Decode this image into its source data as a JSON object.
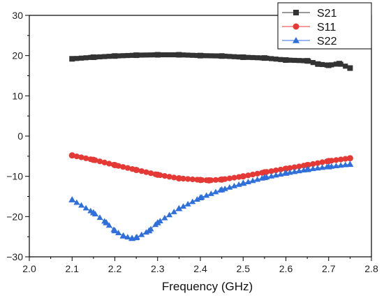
{
  "chart_data": {
    "type": "line",
    "title": "",
    "xlabel": "Frequency (GHz)",
    "ylabel": "",
    "xlim": [
      2.0,
      2.8
    ],
    "ylim": [
      -30,
      30
    ],
    "x_ticks": [
      2.0,
      2.1,
      2.2,
      2.3,
      2.4,
      2.5,
      2.6,
      2.7,
      2.8
    ],
    "x_tick_labels": [
      "2.0",
      "2.1",
      "2.2",
      "2.3",
      "2.4",
      "2.5",
      "2.6",
      "2.7",
      "2.8"
    ],
    "y_ticks": [
      -30,
      -20,
      -10,
      0,
      10,
      20,
      30
    ],
    "y_tick_labels": [
      "−30",
      "−20",
      "−10",
      "0",
      "10",
      "20",
      "30"
    ],
    "grid": false,
    "legend_position": "top-right",
    "series": [
      {
        "name": "S21",
        "color": "#333333",
        "marker": "square",
        "x": [
          2.1,
          2.15,
          2.2,
          2.25,
          2.3,
          2.35,
          2.4,
          2.45,
          2.5,
          2.55,
          2.6,
          2.65,
          2.675,
          2.7,
          2.725,
          2.75
        ],
        "y": [
          19.2,
          19.6,
          19.9,
          20.1,
          20.2,
          20.2,
          20.0,
          19.9,
          19.6,
          19.4,
          18.9,
          18.7,
          17.9,
          17.6,
          18.0,
          16.9
        ]
      },
      {
        "name": "S11",
        "color": "#e53935",
        "marker": "circle",
        "x": [
          2.1,
          2.15,
          2.2,
          2.25,
          2.3,
          2.35,
          2.4,
          2.42,
          2.45,
          2.5,
          2.55,
          2.6,
          2.65,
          2.7,
          2.75
        ],
        "y": [
          -4.8,
          -5.9,
          -7.2,
          -8.4,
          -9.6,
          -10.5,
          -10.9,
          -11.0,
          -10.8,
          -10.0,
          -9.0,
          -8.1,
          -7.2,
          -6.2,
          -5.5
        ]
      },
      {
        "name": "S22",
        "color": "#2f6fdb",
        "marker": "triangle",
        "x": [
          2.1,
          2.15,
          2.18,
          2.2,
          2.22,
          2.24,
          2.25,
          2.28,
          2.3,
          2.35,
          2.4,
          2.45,
          2.5,
          2.55,
          2.6,
          2.65,
          2.7,
          2.75
        ],
        "y": [
          -15.8,
          -19.0,
          -21.5,
          -23.5,
          -24.8,
          -25.4,
          -25.2,
          -23.5,
          -21.5,
          -18.0,
          -15.3,
          -13.3,
          -11.7,
          -10.3,
          -9.2,
          -8.3,
          -7.6,
          -7.0
        ]
      }
    ]
  }
}
